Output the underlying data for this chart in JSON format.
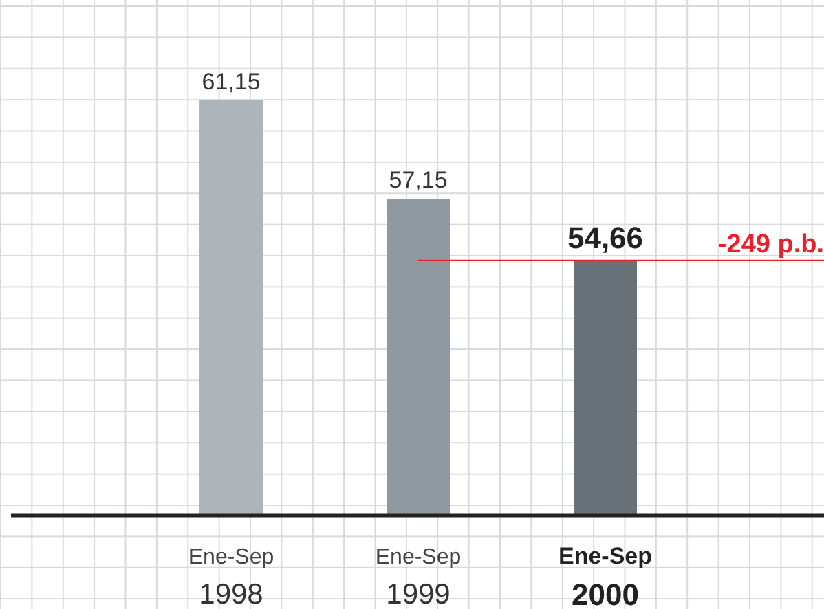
{
  "chart_data": {
    "type": "bar",
    "categories": [
      "Ene-Sep 1998",
      "Ene-Sep 1999",
      "Ene-Sep 2000"
    ],
    "values": [
      61.15,
      57.15,
      54.66
    ],
    "colors": [
      "#adb4ba",
      "#8f999f",
      "#687177"
    ],
    "value_labels": [
      "61,15",
      "57,15",
      "54,66"
    ],
    "ylim": [
      44.3,
      61.15
    ],
    "ref_lines": [
      {
        "axis": "y",
        "value": 54.66,
        "label": "-249 p.b.",
        "color": "#e8202a"
      }
    ]
  }
}
